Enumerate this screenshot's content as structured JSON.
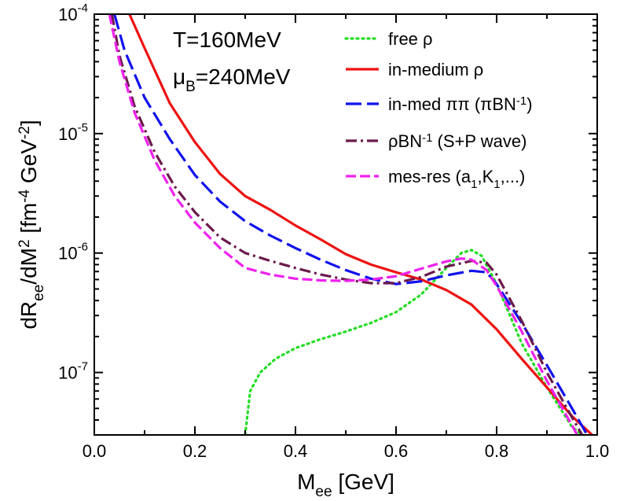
{
  "chart_data": {
    "type": "line",
    "title": "",
    "xlabel": {
      "main": "M",
      "sub": "ee",
      "rest": " [GeV]"
    },
    "ylabel": {
      "parts": [
        {
          "t": "dR",
          "s": "base"
        },
        {
          "t": "ee",
          "s": "sub"
        },
        {
          "t": "/dM",
          "s": "base"
        },
        {
          "t": "2",
          "s": "sup"
        },
        {
          "t": " [fm",
          "s": "base"
        },
        {
          "t": "-4",
          "s": "sup"
        },
        {
          "t": " GeV",
          "s": "base"
        },
        {
          "t": "-2",
          "s": "sup"
        },
        {
          "t": "]",
          "s": "base"
        }
      ]
    },
    "xlim": [
      0.0,
      1.0
    ],
    "ylim": [
      3e-08,
      0.0001
    ],
    "yscale": "log",
    "xticks": [
      0.0,
      0.2,
      0.4,
      0.6,
      0.8,
      1.0
    ],
    "xtick_labels": [
      "0.0",
      "0.2",
      "0.4",
      "0.6",
      "0.8",
      "1.0"
    ],
    "yticks": [
      {
        "value": 0.0001,
        "base": "10",
        "exp": "-4"
      },
      {
        "value": 1e-05,
        "base": "10",
        "exp": "-5"
      },
      {
        "value": 1e-06,
        "base": "10",
        "exp": "-6"
      },
      {
        "value": 1e-07,
        "base": "10",
        "exp": "-7"
      }
    ],
    "annotations": [
      {
        "id": "temperature",
        "parts": [
          {
            "t": "T=160MeV",
            "s": "base"
          }
        ]
      },
      {
        "id": "chemical-potential",
        "parts": [
          {
            "t": "μ",
            "s": "base"
          },
          {
            "t": "B",
            "s": "sub"
          },
          {
            "t": "=240MeV",
            "s": "base"
          }
        ]
      }
    ],
    "series": [
      {
        "id": "free-rho",
        "name_parts": [
          {
            "t": "free ρ",
            "s": "base"
          }
        ],
        "color": "#22dd22",
        "dash": "dotted",
        "x": [
          0.3,
          0.31,
          0.33,
          0.36,
          0.4,
          0.45,
          0.5,
          0.55,
          0.6,
          0.65,
          0.7,
          0.73,
          0.75,
          0.77,
          0.8,
          0.85,
          0.9,
          0.95,
          0.97
        ],
        "y": [
          3e-08,
          7e-08,
          1e-07,
          1.3e-07,
          1.6e-07,
          1.9e-07,
          2.2e-07,
          2.6e-07,
          3.2e-07,
          4.5e-07,
          7.5e-07,
          1e-06,
          1.06e-06,
          9.5e-07,
          5.5e-07,
          1.75e-07,
          7.5e-08,
          3.5e-08,
          3e-08
        ]
      },
      {
        "id": "in-medium-rho",
        "name_parts": [
          {
            "t": "in-medium ρ",
            "s": "base"
          }
        ],
        "color": "#ee1111",
        "dash": "solid",
        "x": [
          0.07,
          0.1,
          0.15,
          0.2,
          0.25,
          0.3,
          0.35,
          0.4,
          0.45,
          0.5,
          0.55,
          0.6,
          0.65,
          0.7,
          0.75,
          0.8,
          0.85,
          0.9,
          0.95,
          0.99
        ],
        "y": [
          0.0001,
          5.2e-05,
          1.8e-05,
          8.5e-06,
          4.6e-06,
          3e-06,
          2.3e-06,
          1.7e-06,
          1.3e-06,
          9.8e-07,
          8e-07,
          6.9e-07,
          6e-07,
          4.9e-07,
          3.7e-07,
          2.3e-07,
          1.3e-07,
          7.5e-08,
          4.3e-08,
          3e-08
        ]
      },
      {
        "id": "in-med-pipi",
        "name_parts": [
          {
            "t": "in-med ππ (πBN",
            "s": "base"
          },
          {
            "t": "-1",
            "s": "sup"
          },
          {
            "t": ")",
            "s": "base"
          }
        ],
        "color": "#1111ee",
        "dash": "longdash",
        "x": [
          0.04,
          0.06,
          0.1,
          0.15,
          0.2,
          0.25,
          0.3,
          0.35,
          0.4,
          0.45,
          0.5,
          0.55,
          0.6,
          0.65,
          0.7,
          0.75,
          0.78,
          0.8,
          0.85,
          0.9,
          0.95,
          0.98
        ],
        "y": [
          0.0001,
          5e-05,
          2e-05,
          9e-06,
          4.5e-06,
          2.7e-06,
          1.85e-06,
          1.4e-06,
          1.1e-06,
          8.8e-07,
          7.2e-07,
          6.1e-07,
          5.5e-07,
          5.8e-07,
          6.5e-07,
          7.1e-07,
          6.9e-07,
          5.5e-07,
          2.6e-07,
          1.15e-07,
          5e-08,
          3e-08
        ]
      },
      {
        "id": "rho-bn-wave",
        "name_parts": [
          {
            "t": "ρBN",
            "s": "base"
          },
          {
            "t": "-1",
            "s": "sup"
          },
          {
            "t": " (S+P wave)",
            "s": "base"
          }
        ],
        "color": "#6b1a4c",
        "dash": "dashdot",
        "x": [
          0.035,
          0.05,
          0.08,
          0.12,
          0.16,
          0.2,
          0.25,
          0.3,
          0.35,
          0.4,
          0.45,
          0.5,
          0.55,
          0.6,
          0.65,
          0.7,
          0.75,
          0.78,
          0.8,
          0.85,
          0.9,
          0.95,
          0.97
        ],
        "y": [
          0.0001,
          4.5e-05,
          1.7e-05,
          7e-06,
          3.6e-06,
          2.2e-06,
          1.35e-06,
          1e-06,
          8.6e-07,
          7.5e-07,
          6.6e-07,
          6e-07,
          5.6e-07,
          5.6e-07,
          6.3e-07,
          7.7e-07,
          8.6e-07,
          8.3e-07,
          6.6e-07,
          2.7e-07,
          1e-07,
          4.2e-08,
          3e-08
        ]
      },
      {
        "id": "mes-res",
        "name_parts": [
          {
            "t": "mes-res (a",
            "s": "base"
          },
          {
            "t": "1",
            "s": "sub"
          },
          {
            "t": ",K",
            "s": "base"
          },
          {
            "t": "1",
            "s": "sub"
          },
          {
            "t": ",...)",
            "s": "base"
          }
        ],
        "color": "#ee22ee",
        "dash": "dashed",
        "x": [
          0.03,
          0.05,
          0.08,
          0.12,
          0.16,
          0.2,
          0.25,
          0.3,
          0.35,
          0.4,
          0.45,
          0.5,
          0.55,
          0.6,
          0.65,
          0.7,
          0.73,
          0.75,
          0.78,
          0.8,
          0.85,
          0.9,
          0.95,
          0.96
        ],
        "y": [
          0.0001,
          4e-05,
          1.5e-05,
          6e-06,
          3e-06,
          1.8e-06,
          1.1e-06,
          7.5e-07,
          6.6e-07,
          6.1e-07,
          5.9e-07,
          5.85e-07,
          6e-07,
          6.4e-07,
          7.4e-07,
          8.5e-07,
          9e-07,
          8.8e-07,
          7.2e-07,
          5.3e-07,
          2.2e-07,
          8.5e-08,
          3.6e-08,
          3e-08
        ]
      }
    ]
  }
}
